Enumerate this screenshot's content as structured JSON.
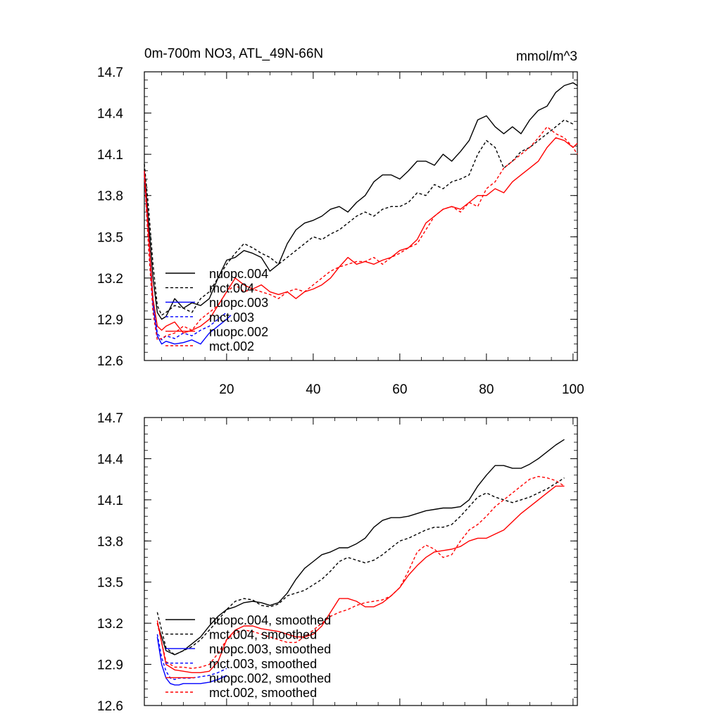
{
  "title": "0m-700m NO3, ATL_49N-66N",
  "units": "mmol/m^3",
  "chart_data": [
    {
      "type": "line",
      "name": "raw",
      "xlim": [
        1,
        101
      ],
      "ylim": [
        12.6,
        14.7
      ],
      "xticks": [
        20,
        40,
        60,
        80,
        100
      ],
      "yticks": [
        12.6,
        12.9,
        13.2,
        13.5,
        13.8,
        14.1,
        14.4,
        14.7
      ],
      "ytick_labels": [
        "12.6",
        "12.9",
        "13.2",
        "13.5",
        "13.8",
        "14.1",
        "14.4",
        "14.7"
      ],
      "xtick_labels": [
        "20",
        "40",
        "60",
        "80",
        "100"
      ],
      "series": [
        {
          "name": "nuopc.004",
          "color": "#000000",
          "dash": "solid",
          "x": [
            1,
            2,
            3,
            4,
            5,
            6,
            8,
            10,
            12,
            14,
            16,
            18,
            20,
            22,
            24,
            26,
            28,
            30,
            32,
            34,
            36,
            38,
            40,
            42,
            44,
            46,
            48,
            50,
            52,
            54,
            56,
            58,
            60,
            62,
            64,
            66,
            68,
            70,
            72,
            74,
            76,
            78,
            80,
            82,
            84,
            86,
            88,
            90,
            92,
            94,
            96,
            98,
            100,
            101
          ],
          "y": [
            13.99,
            13.6,
            13.2,
            12.95,
            12.9,
            12.92,
            13.05,
            12.98,
            13.02,
            13.0,
            13.05,
            13.2,
            13.33,
            13.35,
            13.4,
            13.38,
            13.35,
            13.25,
            13.3,
            13.45,
            13.55,
            13.6,
            13.62,
            13.65,
            13.7,
            13.72,
            13.68,
            13.75,
            13.8,
            13.9,
            13.95,
            13.95,
            13.92,
            13.98,
            14.05,
            14.05,
            14.02,
            14.1,
            14.05,
            14.12,
            14.2,
            14.35,
            14.38,
            14.3,
            14.25,
            14.3,
            14.25,
            14.35,
            14.42,
            14.45,
            14.55,
            14.6,
            14.62,
            14.6
          ]
        },
        {
          "name": "mct.004",
          "color": "#000000",
          "dash": "dashed",
          "x": [
            1,
            2,
            3,
            4,
            5,
            6,
            8,
            10,
            12,
            14,
            16,
            18,
            20,
            22,
            24,
            26,
            28,
            30,
            32,
            34,
            36,
            38,
            40,
            42,
            44,
            46,
            48,
            50,
            52,
            54,
            56,
            58,
            60,
            62,
            64,
            66,
            68,
            70,
            72,
            74,
            76,
            78,
            80,
            82,
            84,
            86,
            88,
            90,
            92,
            94,
            96,
            98,
            100
          ],
          "y": [
            14.03,
            13.7,
            13.3,
            13.0,
            12.93,
            12.95,
            13.0,
            12.98,
            12.95,
            13.05,
            13.1,
            13.2,
            13.3,
            13.38,
            13.45,
            13.42,
            13.38,
            13.35,
            13.3,
            13.35,
            13.4,
            13.45,
            13.5,
            13.48,
            13.52,
            13.55,
            13.6,
            13.65,
            13.68,
            13.65,
            13.7,
            13.72,
            13.72,
            13.75,
            13.82,
            13.8,
            13.88,
            13.85,
            13.9,
            13.92,
            13.95,
            14.1,
            14.2,
            14.15,
            14.0,
            14.05,
            14.12,
            14.15,
            14.2,
            14.25,
            14.3,
            14.35,
            14.32
          ]
        },
        {
          "name": "nuopc.003",
          "color": "#0000ff",
          "dash": "solid",
          "x": [
            1,
            2,
            3,
            4,
            5,
            6,
            8,
            10,
            12,
            14,
            16,
            18,
            20,
            21
          ],
          "y": [
            13.96,
            13.5,
            13.0,
            12.78,
            12.72,
            12.74,
            12.72,
            12.73,
            12.75,
            12.72,
            12.8,
            12.85,
            12.9,
            12.93
          ]
        },
        {
          "name": "mct.003",
          "color": "#0000ff",
          "dash": "dashed",
          "x": [
            1,
            2,
            3,
            4,
            5,
            6,
            8,
            10,
            12,
            14,
            16,
            18,
            20
          ],
          "y": [
            13.97,
            13.5,
            13.05,
            12.8,
            12.75,
            12.78,
            12.76,
            12.8,
            12.78,
            12.82,
            12.85,
            12.9,
            12.95
          ]
        },
        {
          "name": "nuopc.002",
          "color": "#ff0000",
          "dash": "solid",
          "x": [
            1,
            2,
            3,
            4,
            5,
            6,
            8,
            10,
            12,
            14,
            16,
            18,
            20,
            22,
            24,
            26,
            28,
            30,
            32,
            34,
            36,
            38,
            40,
            42,
            44,
            46,
            48,
            50,
            52,
            54,
            56,
            58,
            60,
            62,
            64,
            66,
            68,
            70,
            72,
            74,
            76,
            78,
            80,
            82,
            84,
            86,
            88,
            90,
            92,
            94,
            96,
            98,
            100,
            101
          ],
          "y": [
            13.98,
            13.5,
            13.05,
            12.85,
            12.82,
            12.85,
            12.88,
            12.8,
            12.82,
            12.85,
            12.9,
            13.0,
            13.1,
            13.2,
            13.15,
            13.12,
            13.15,
            13.1,
            13.08,
            13.1,
            13.05,
            13.1,
            13.12,
            13.15,
            13.2,
            13.28,
            13.35,
            13.3,
            13.32,
            13.3,
            13.33,
            13.35,
            13.4,
            13.42,
            13.48,
            13.6,
            13.65,
            13.7,
            13.72,
            13.7,
            13.75,
            13.8,
            13.8,
            13.85,
            13.82,
            13.9,
            13.95,
            14.0,
            14.05,
            14.15,
            14.22,
            14.2,
            14.15,
            14.18
          ]
        },
        {
          "name": "mct.002",
          "color": "#ff0000",
          "dash": "dashed",
          "x": [
            1,
            2,
            3,
            4,
            5,
            6,
            8,
            10,
            12,
            14,
            16,
            18,
            20,
            22,
            24,
            26,
            28,
            30,
            32,
            34,
            36,
            38,
            40,
            42,
            44,
            46,
            48,
            50,
            52,
            54,
            56,
            58,
            60,
            62,
            64,
            66,
            68,
            70,
            72,
            74,
            76,
            78,
            80,
            82,
            84,
            86,
            88,
            90,
            92,
            94,
            96,
            98,
            100,
            101
          ],
          "y": [
            13.95,
            13.4,
            12.95,
            12.75,
            12.76,
            12.78,
            12.8,
            12.85,
            12.82,
            12.9,
            12.95,
            13.0,
            13.1,
            13.15,
            13.1,
            13.12,
            13.1,
            13.08,
            13.05,
            13.1,
            13.12,
            13.1,
            13.15,
            13.2,
            13.25,
            13.28,
            13.3,
            13.32,
            13.32,
            13.35,
            13.3,
            13.35,
            13.38,
            13.42,
            13.45,
            13.55,
            13.65,
            13.7,
            13.72,
            13.68,
            13.75,
            13.72,
            13.85,
            13.9,
            14.0,
            14.05,
            14.1,
            14.15,
            14.22,
            14.3,
            14.25,
            14.22,
            14.15,
            14.1
          ]
        }
      ]
    },
    {
      "type": "line",
      "name": "smoothed",
      "xlim": [
        1,
        101
      ],
      "ylim": [
        12.6,
        14.7
      ],
      "yticks": [
        12.6,
        12.9,
        13.2,
        13.5,
        13.8,
        14.1,
        14.4,
        14.7
      ],
      "ytick_labels": [
        "12.6",
        "12.9",
        "13.2",
        "13.5",
        "13.8",
        "14.1",
        "14.4",
        "14.7"
      ],
      "series": [
        {
          "name": "nuopc.004, smoothed",
          "color": "#000000",
          "dash": "solid",
          "x": [
            4,
            6,
            8,
            10,
            12,
            14,
            16,
            18,
            20,
            22,
            24,
            26,
            28,
            30,
            32,
            34,
            36,
            38,
            40,
            42,
            44,
            46,
            48,
            50,
            52,
            54,
            56,
            58,
            60,
            62,
            64,
            66,
            68,
            70,
            72,
            74,
            76,
            78,
            80,
            82,
            84,
            86,
            88,
            90,
            92,
            94,
            96,
            98
          ],
          "y": [
            13.2,
            13.0,
            12.97,
            13.0,
            13.05,
            13.1,
            13.18,
            13.25,
            13.3,
            13.32,
            13.35,
            13.36,
            13.35,
            13.33,
            13.35,
            13.42,
            13.52,
            13.6,
            13.65,
            13.7,
            13.72,
            13.75,
            13.75,
            13.78,
            13.82,
            13.9,
            13.95,
            13.97,
            13.97,
            13.98,
            14.0,
            14.02,
            14.03,
            14.04,
            14.04,
            14.05,
            14.1,
            14.2,
            14.28,
            14.35,
            14.35,
            14.33,
            14.33,
            14.36,
            14.4,
            14.45,
            14.5,
            14.54
          ]
        },
        {
          "name": "mct.004, smoothed",
          "color": "#000000",
          "dash": "dashed",
          "x": [
            4,
            6,
            8,
            10,
            12,
            14,
            16,
            18,
            20,
            22,
            24,
            26,
            28,
            30,
            32,
            34,
            36,
            38,
            40,
            42,
            44,
            46,
            48,
            50,
            52,
            54,
            56,
            58,
            60,
            62,
            64,
            66,
            68,
            70,
            72,
            74,
            76,
            78,
            80,
            82,
            84,
            86,
            88,
            90,
            92,
            94,
            96,
            98
          ],
          "y": [
            13.28,
            13.02,
            12.97,
            13.0,
            13.03,
            13.08,
            13.15,
            13.22,
            13.3,
            13.36,
            13.38,
            13.37,
            13.33,
            13.32,
            13.34,
            13.4,
            13.42,
            13.44,
            13.48,
            13.52,
            13.58,
            13.65,
            13.68,
            13.66,
            13.64,
            13.66,
            13.7,
            13.75,
            13.8,
            13.82,
            13.85,
            13.88,
            13.9,
            13.9,
            13.92,
            13.98,
            14.05,
            14.12,
            14.15,
            14.12,
            14.1,
            14.08,
            14.1,
            14.12,
            14.15,
            14.18,
            14.22,
            14.26
          ]
        },
        {
          "name": "nuopc.003, smoothed",
          "color": "#0000ff",
          "dash": "solid",
          "x": [
            4,
            5,
            6,
            7,
            8,
            9,
            10,
            12,
            14,
            16,
            18,
            20
          ],
          "y": [
            13.1,
            12.9,
            12.8,
            12.76,
            12.75,
            12.75,
            12.76,
            12.76,
            12.76,
            12.77,
            12.79,
            12.82
          ]
        },
        {
          "name": "mct.003, smoothed",
          "color": "#0000ff",
          "dash": "dashed",
          "x": [
            4,
            5,
            6,
            7,
            8,
            9,
            10,
            12,
            14,
            16,
            18,
            20
          ],
          "y": [
            13.12,
            12.95,
            12.85,
            12.8,
            12.79,
            12.8,
            12.8,
            12.8,
            12.81,
            12.82,
            12.84,
            12.87
          ]
        },
        {
          "name": "nuopc.002, smoothed",
          "color": "#ff0000",
          "dash": "solid",
          "x": [
            4,
            6,
            8,
            10,
            12,
            14,
            16,
            18,
            20,
            22,
            24,
            26,
            28,
            30,
            32,
            34,
            36,
            38,
            40,
            42,
            44,
            46,
            48,
            50,
            52,
            54,
            56,
            58,
            60,
            62,
            64,
            66,
            68,
            70,
            72,
            74,
            76,
            78,
            80,
            82,
            84,
            86,
            88,
            90,
            92,
            94,
            96,
            98
          ],
          "y": [
            13.22,
            12.9,
            12.86,
            12.85,
            12.84,
            12.84,
            12.85,
            12.92,
            13.08,
            13.15,
            13.18,
            13.18,
            13.16,
            13.15,
            13.14,
            13.12,
            13.1,
            13.1,
            13.12,
            13.18,
            13.28,
            13.38,
            13.38,
            13.36,
            13.32,
            13.32,
            13.35,
            13.4,
            13.46,
            13.55,
            13.62,
            13.68,
            13.72,
            13.73,
            13.74,
            13.76,
            13.8,
            13.82,
            13.82,
            13.85,
            13.88,
            13.94,
            14.0,
            14.05,
            14.1,
            14.15,
            14.2,
            14.2
          ]
        },
        {
          "name": "mct.002, smoothed",
          "color": "#ff0000",
          "dash": "dashed",
          "x": [
            4,
            6,
            8,
            10,
            12,
            14,
            16,
            18,
            20,
            22,
            24,
            26,
            28,
            30,
            32,
            34,
            36,
            38,
            40,
            42,
            44,
            46,
            48,
            50,
            52,
            54,
            56,
            58,
            60,
            62,
            64,
            66,
            68,
            70,
            72,
            74,
            76,
            78,
            80,
            82,
            84,
            86,
            88,
            90,
            92,
            94,
            96,
            98
          ],
          "y": [
            13.2,
            12.92,
            12.88,
            12.88,
            12.87,
            12.88,
            12.9,
            12.98,
            13.08,
            13.13,
            13.15,
            13.14,
            13.12,
            13.1,
            13.08,
            13.06,
            13.06,
            13.1,
            13.15,
            13.2,
            13.25,
            13.28,
            13.3,
            13.33,
            13.35,
            13.36,
            13.37,
            13.4,
            13.46,
            13.58,
            13.72,
            13.77,
            13.74,
            13.68,
            13.7,
            13.8,
            13.88,
            13.92,
            13.98,
            14.05,
            14.1,
            14.15,
            14.2,
            14.25,
            14.27,
            14.26,
            14.24,
            14.2
          ]
        }
      ]
    }
  ]
}
